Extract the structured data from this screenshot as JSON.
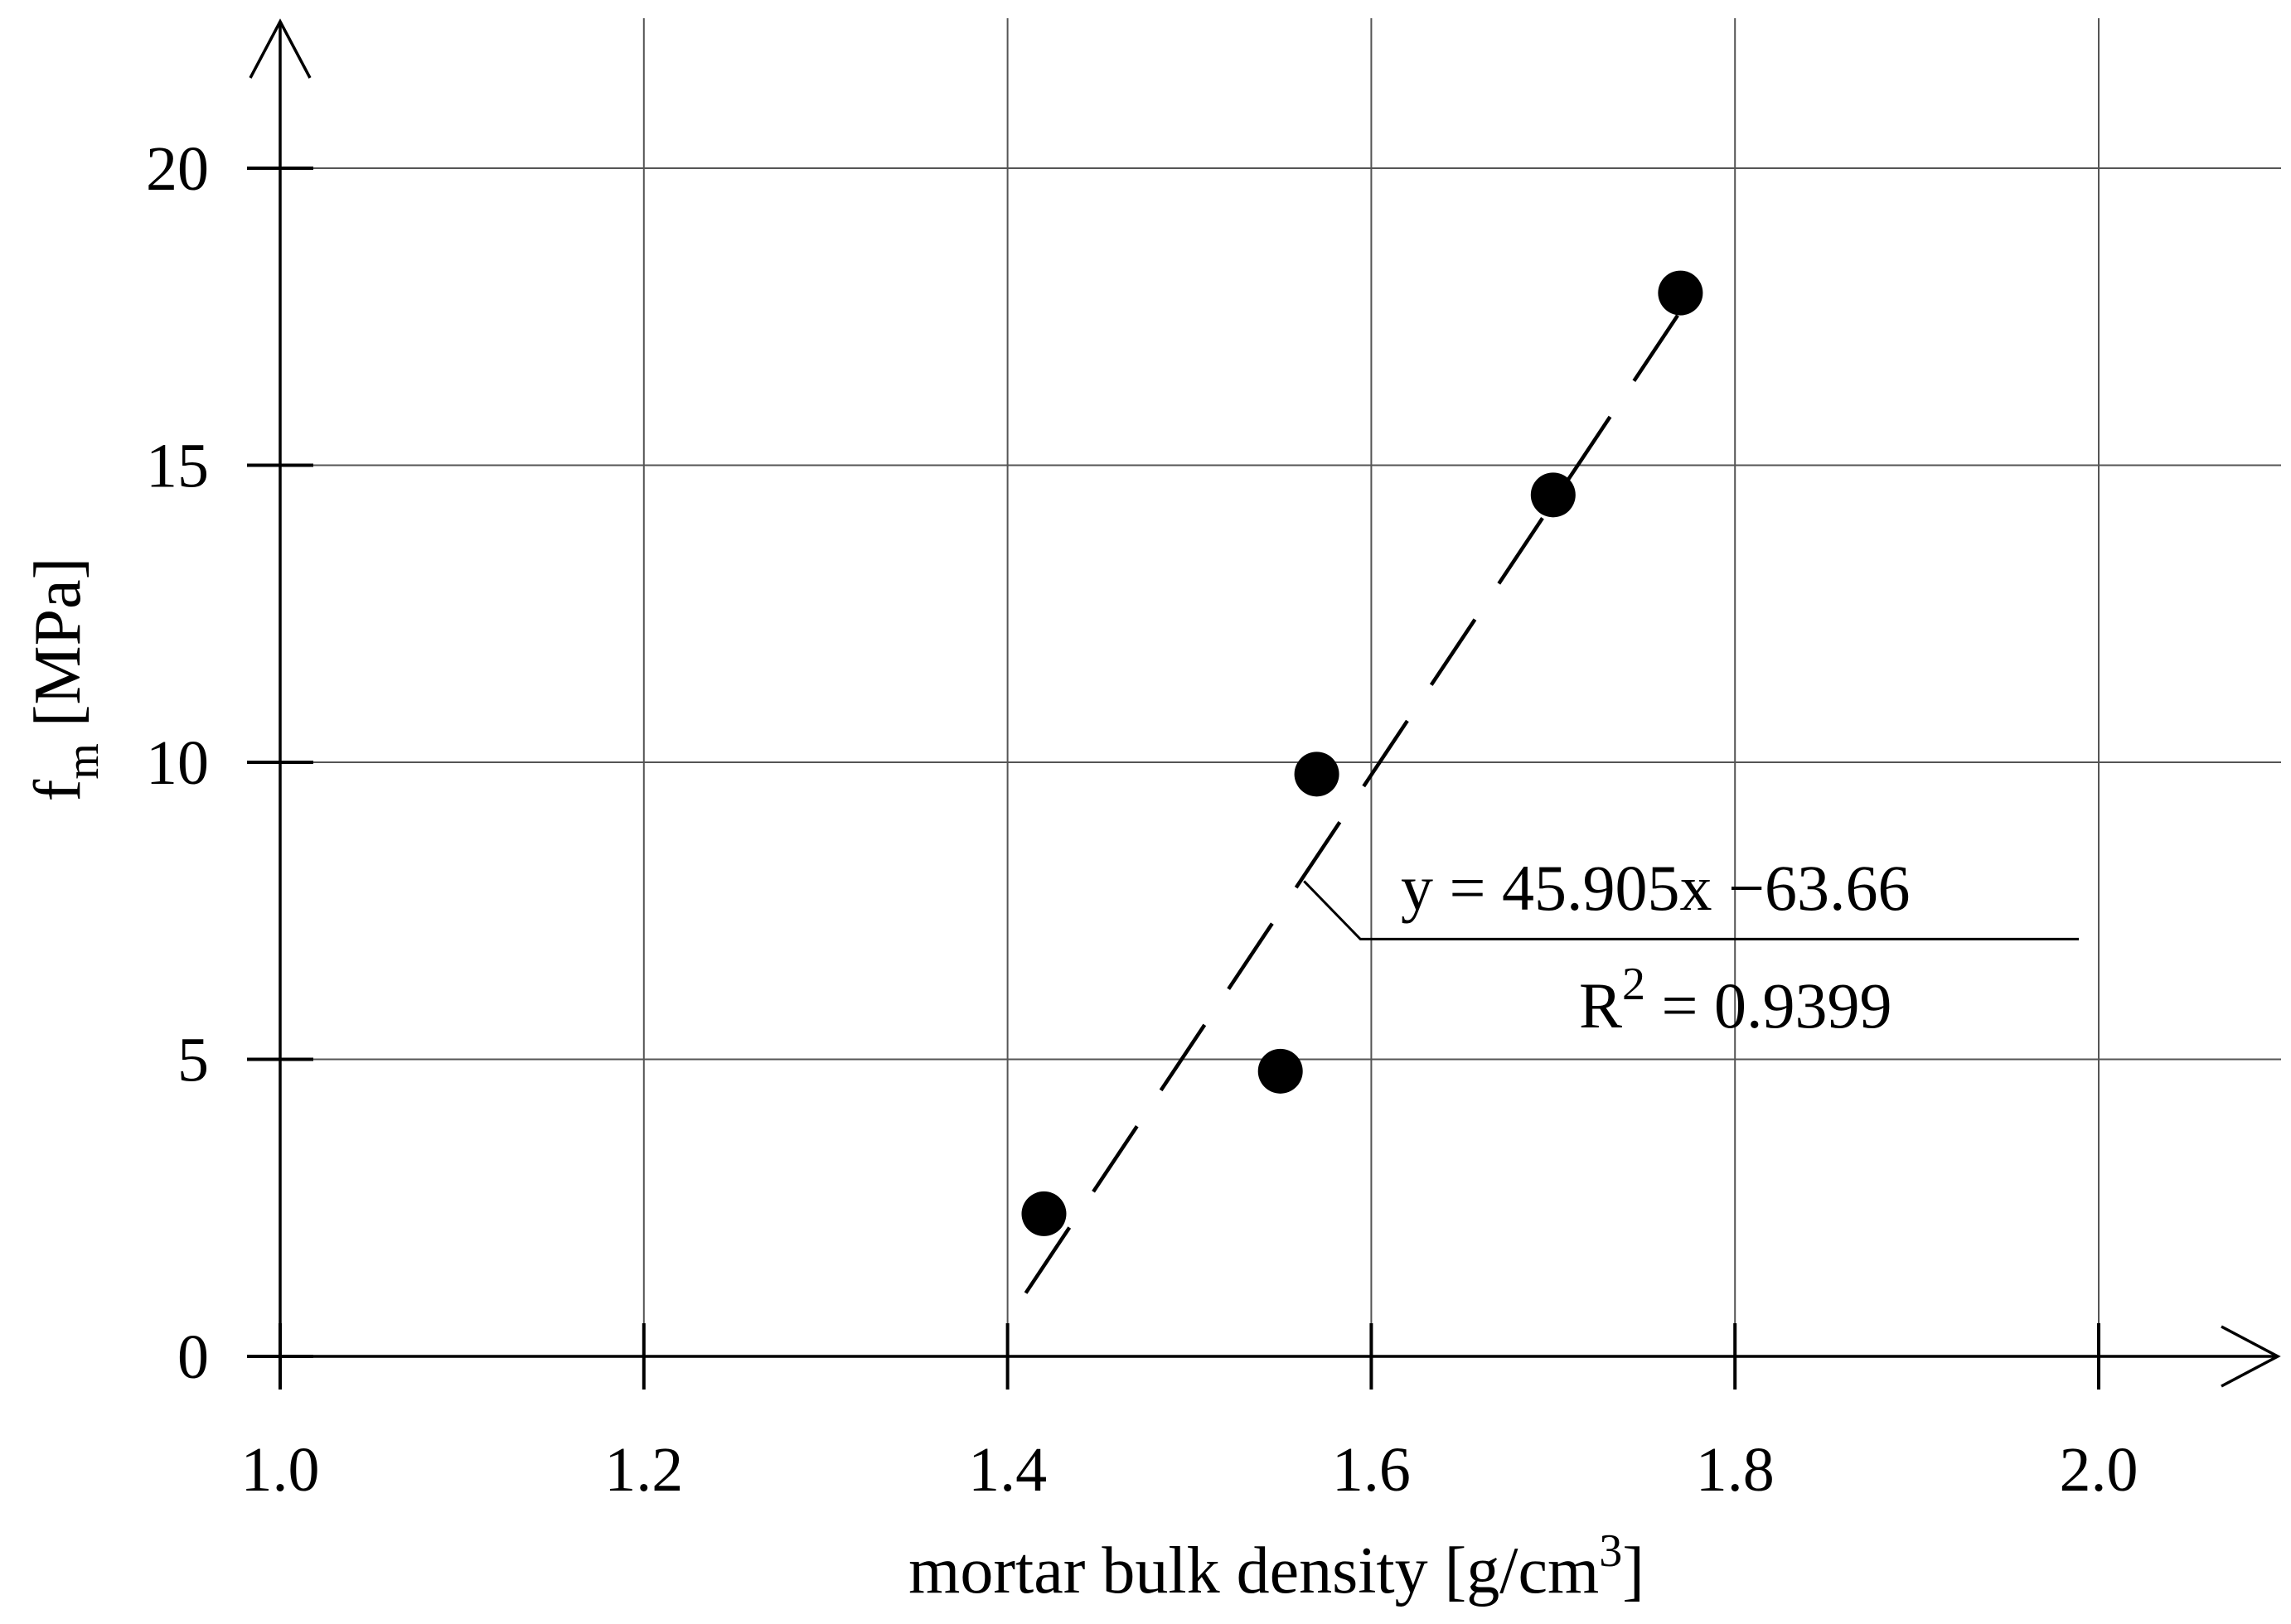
{
  "chart_data": {
    "type": "scatter",
    "xlim": [
      1.0,
      2.1
    ],
    "ylim": [
      0,
      22.5
    ],
    "x_ticks": [
      1.0,
      1.2,
      1.4,
      1.6,
      1.8,
      2.0
    ],
    "x_tick_labels": [
      "1.0",
      "1.2",
      "1.4",
      "1.6",
      "1.8",
      "2.0"
    ],
    "y_ticks": [
      0,
      5,
      10,
      15,
      20
    ],
    "y_tick_labels": [
      "0",
      "5",
      "10",
      "15",
      "20"
    ],
    "grid": true,
    "xlabel": {
      "text": "mortar bulk density [g/cm",
      "sup": "3",
      "tail": "]"
    },
    "ylabel": {
      "text": "f",
      "sub": "m",
      "tail": " [MPa]"
    },
    "points": [
      {
        "x": 1.42,
        "y": 2.4
      },
      {
        "x": 1.55,
        "y": 4.8
      },
      {
        "x": 1.57,
        "y": 9.8
      },
      {
        "x": 1.7,
        "y": 14.5
      },
      {
        "x": 1.77,
        "y": 17.9
      }
    ],
    "trendline": {
      "style": "dashed",
      "x_range": [
        1.41,
        1.77
      ],
      "slope": 45.905,
      "intercept": -63.66
    },
    "annotation": {
      "equation": "y = 45.905x −63.66",
      "r2_prefix": "R",
      "r2_sup": "2",
      "r2_value": " = 0.9399",
      "pointer": {
        "x": 1.563,
        "y": 8.0
      }
    }
  }
}
